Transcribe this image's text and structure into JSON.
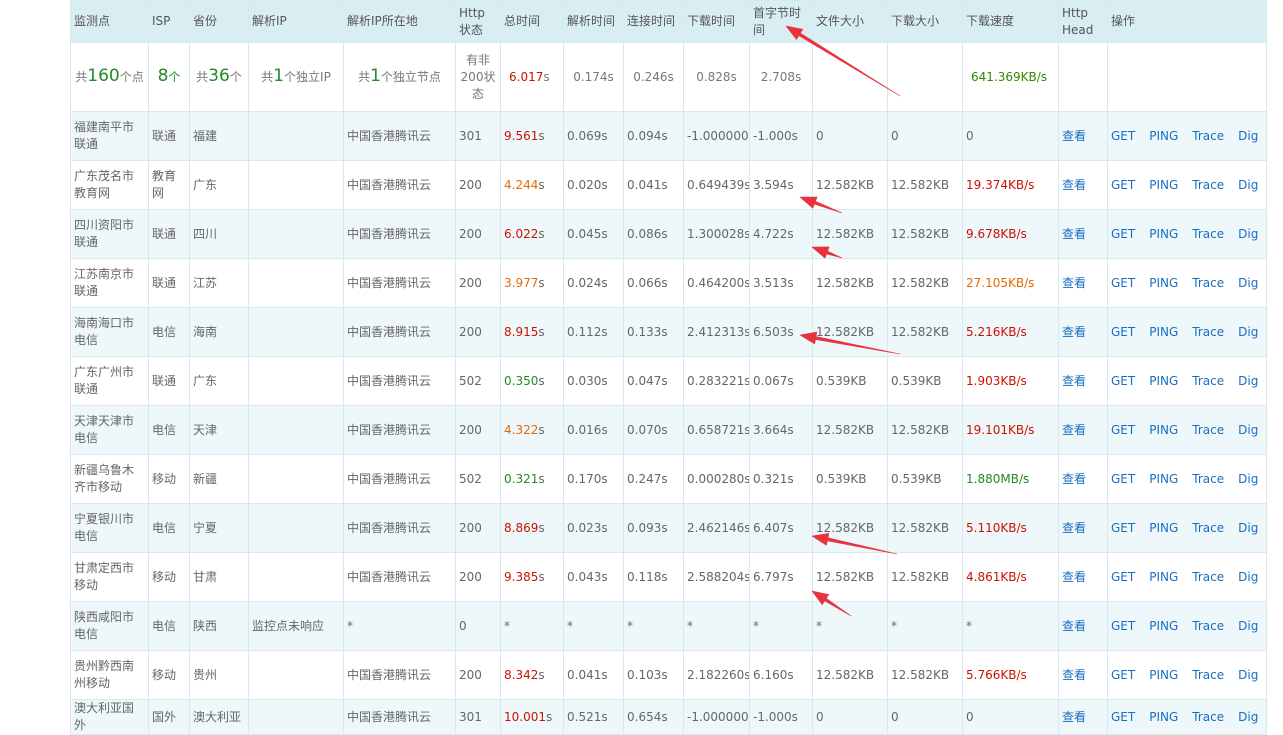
{
  "headers": [
    "监测点",
    "ISP",
    "省份",
    "解析IP",
    "解析IP所在地",
    "Http状态",
    "总时间",
    "解析时间",
    "连接时间",
    "下载时间",
    "首字节时间",
    "文件大小",
    "下载大小",
    "下载速度",
    "Http Head",
    "操作"
  ],
  "summary": {
    "monitor_pre": "共",
    "monitor_num": "160",
    "monitor_post": "个点",
    "isp_num": "8",
    "isp_post": "个",
    "province_pre": "共",
    "province_num": "36",
    "province_post": "个",
    "ip_pre": "共",
    "ip_num": "1",
    "ip_post": "个独立IP",
    "loc_pre": "共",
    "loc_num": "1",
    "loc_post": "个独立节点",
    "http": "有非200状态",
    "total_num": "6.017",
    "total_unit": "s",
    "dns": "0.174s",
    "connect": "0.246s",
    "download": "0.828s",
    "ttfb": "2.708s",
    "speed": "641.369KB/s"
  },
  "rows": [
    {
      "monitor": "福建南平市联通",
      "isp": "联通",
      "province": "福建",
      "ip": "",
      "loc": "中国香港腾讯云",
      "http": "301",
      "total_num": "9.561",
      "total_color": "red",
      "dns": "0.069s",
      "connect": "0.094s",
      "download": "-1.000000s",
      "ttfb": "-1.000s",
      "file": "0",
      "dl": "0",
      "speed": "0",
      "speed_color": "gray",
      "head": "查看",
      "ops": [
        "GET",
        "PING",
        "Trace",
        "Dig"
      ]
    },
    {
      "monitor": "广东茂名市教育网",
      "isp": "教育网",
      "province": "广东",
      "ip": "",
      "loc": "中国香港腾讯云",
      "http": "200",
      "total_num": "4.244",
      "total_color": "orange",
      "dns": "0.020s",
      "connect": "0.041s",
      "download": "0.649439s",
      "ttfb": "3.594s",
      "file": "12.582KB",
      "dl": "12.582KB",
      "speed": "19.374KB/s",
      "speed_color": "red",
      "head": "查看",
      "ops": [
        "GET",
        "PING",
        "Trace",
        "Dig"
      ]
    },
    {
      "monitor": "四川资阳市联通",
      "isp": "联通",
      "province": "四川",
      "ip": "",
      "loc": "中国香港腾讯云",
      "http": "200",
      "total_num": "6.022",
      "total_color": "red",
      "dns": "0.045s",
      "connect": "0.086s",
      "download": "1.300028s",
      "ttfb": "4.722s",
      "file": "12.582KB",
      "dl": "12.582KB",
      "speed": "9.678KB/s",
      "speed_color": "red",
      "head": "查看",
      "ops": [
        "GET",
        "PING",
        "Trace",
        "Dig"
      ]
    },
    {
      "monitor": "江苏南京市联通",
      "isp": "联通",
      "province": "江苏",
      "ip": "",
      "loc": "中国香港腾讯云",
      "http": "200",
      "total_num": "3.977",
      "total_color": "orange",
      "dns": "0.024s",
      "connect": "0.066s",
      "download": "0.464200s",
      "ttfb": "3.513s",
      "file": "12.582KB",
      "dl": "12.582KB",
      "speed": "27.105KB/s",
      "speed_color": "orange",
      "head": "查看",
      "ops": [
        "GET",
        "PING",
        "Trace",
        "Dig"
      ]
    },
    {
      "monitor": "海南海口市电信",
      "isp": "电信",
      "province": "海南",
      "ip": "",
      "loc": "中国香港腾讯云",
      "http": "200",
      "total_num": "8.915",
      "total_color": "red",
      "dns": "0.112s",
      "connect": "0.133s",
      "download": "2.412313s",
      "ttfb": "6.503s",
      "file": "12.582KB",
      "dl": "12.582KB",
      "speed": "5.216KB/s",
      "speed_color": "red",
      "head": "查看",
      "ops": [
        "GET",
        "PING",
        "Trace",
        "Dig"
      ]
    },
    {
      "monitor": "广东广州市联通",
      "isp": "联通",
      "province": "广东",
      "ip": "",
      "loc": "中国香港腾讯云",
      "http": "502",
      "total_num": "0.350",
      "total_color": "green",
      "dns": "0.030s",
      "connect": "0.047s",
      "download": "0.283221s",
      "ttfb": "0.067s",
      "file": "0.539KB",
      "dl": "0.539KB",
      "speed": "1.903KB/s",
      "speed_color": "red",
      "head": "查看",
      "ops": [
        "GET",
        "PING",
        "Trace",
        "Dig"
      ]
    },
    {
      "monitor": "天津天津市电信",
      "isp": "电信",
      "province": "天津",
      "ip": "",
      "loc": "中国香港腾讯云",
      "http": "200",
      "total_num": "4.322",
      "total_color": "orange",
      "dns": "0.016s",
      "connect": "0.070s",
      "download": "0.658721s",
      "ttfb": "3.664s",
      "file": "12.582KB",
      "dl": "12.582KB",
      "speed": "19.101KB/s",
      "speed_color": "red",
      "head": "查看",
      "ops": [
        "GET",
        "PING",
        "Trace",
        "Dig"
      ]
    },
    {
      "monitor": "新疆乌鲁木齐市移动",
      "isp": "移动",
      "province": "新疆",
      "ip": "",
      "loc": "中国香港腾讯云",
      "http": "502",
      "total_num": "0.321",
      "total_color": "green",
      "dns": "0.170s",
      "connect": "0.247s",
      "download": "0.000280s",
      "ttfb": "0.321s",
      "file": "0.539KB",
      "dl": "0.539KB",
      "speed": "1.880MB/s",
      "speed_color": "green",
      "head": "查看",
      "ops": [
        "GET",
        "PING",
        "Trace",
        "Dig"
      ]
    },
    {
      "monitor": "宁夏银川市电信",
      "isp": "电信",
      "province": "宁夏",
      "ip": "",
      "loc": "中国香港腾讯云",
      "http": "200",
      "total_num": "8.869",
      "total_color": "red",
      "dns": "0.023s",
      "connect": "0.093s",
      "download": "2.462146s",
      "ttfb": "6.407s",
      "file": "12.582KB",
      "dl": "12.582KB",
      "speed": "5.110KB/s",
      "speed_color": "red",
      "head": "查看",
      "ops": [
        "GET",
        "PING",
        "Trace",
        "Dig"
      ]
    },
    {
      "monitor": "甘肃定西市移动",
      "isp": "移动",
      "province": "甘肃",
      "ip": "",
      "loc": "中国香港腾讯云",
      "http": "200",
      "total_num": "9.385",
      "total_color": "red",
      "dns": "0.043s",
      "connect": "0.118s",
      "download": "2.588204s",
      "ttfb": "6.797s",
      "file": "12.582KB",
      "dl": "12.582KB",
      "speed": "4.861KB/s",
      "speed_color": "red",
      "head": "查看",
      "ops": [
        "GET",
        "PING",
        "Trace",
        "Dig"
      ]
    },
    {
      "monitor": "陕西咸阳市电信",
      "isp": "电信",
      "province": "陕西",
      "ip": "监控点未响应",
      "loc": "*",
      "http": "0",
      "total_num": "*",
      "total_color": "gray",
      "dns": "*",
      "connect": "*",
      "download": "*",
      "ttfb": "*",
      "file": "*",
      "dl": "*",
      "speed": "*",
      "speed_color": "gray",
      "head": "查看",
      "ops": [
        "GET",
        "PING",
        "Trace",
        "Dig"
      ]
    },
    {
      "monitor": "贵州黔西南州移动",
      "isp": "移动",
      "province": "贵州",
      "ip": "",
      "loc": "中国香港腾讯云",
      "http": "200",
      "total_num": "8.342",
      "total_color": "red",
      "dns": "0.041s",
      "connect": "0.103s",
      "download": "2.182260s",
      "ttfb": "6.160s",
      "file": "12.582KB",
      "dl": "12.582KB",
      "speed": "5.766KB/s",
      "speed_color": "red",
      "head": "查看",
      "ops": [
        "GET",
        "PING",
        "Trace",
        "Dig"
      ]
    },
    {
      "monitor": "澳大利亚国外",
      "isp": "国外",
      "province": "澳大利亚",
      "ip": "",
      "loc": "中国香港腾讯云",
      "http": "301",
      "total_num": "10.001",
      "total_color": "red",
      "dns": "0.521s",
      "connect": "0.654s",
      "download": "-1.000000s",
      "ttfb": "-1.000s",
      "file": "0",
      "dl": "0",
      "speed": "0",
      "speed_color": "gray",
      "head": "查看",
      "ops": [
        "GET",
        "PING",
        "Trace",
        "Dig"
      ]
    }
  ],
  "annotation_color": "#e8323c"
}
